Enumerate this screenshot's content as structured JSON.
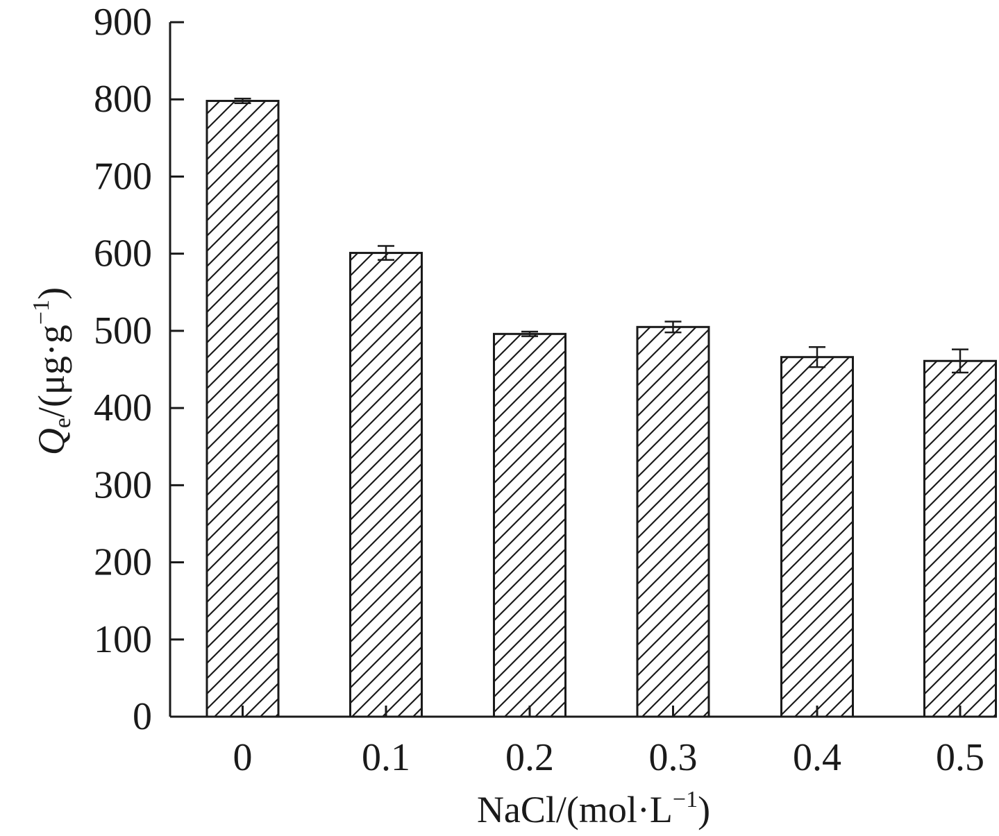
{
  "chart_data": {
    "type": "bar",
    "categories": [
      "0",
      "0.1",
      "0.2",
      "0.3",
      "0.4",
      "0.5"
    ],
    "values": [
      798,
      601,
      496,
      505,
      466,
      461
    ],
    "errors": [
      3,
      9,
      3,
      7,
      13,
      15
    ],
    "ylim": [
      0,
      900
    ],
    "yticks": [
      "0",
      "100",
      "200",
      "300",
      "400",
      "500",
      "600",
      "700",
      "800",
      "900"
    ],
    "xlabel": {
      "main": "NaCl/(mol·L",
      "sup": "−1",
      "close": ")"
    },
    "ylabel": {
      "symbol": "Q",
      "sub": "e",
      "main": "/(μg·g",
      "sup": "−1",
      "close": ")"
    },
    "fill_pattern": "diagonal-hatch",
    "bar_color": "#ffffff",
    "line_color": "#1a1a1a"
  }
}
